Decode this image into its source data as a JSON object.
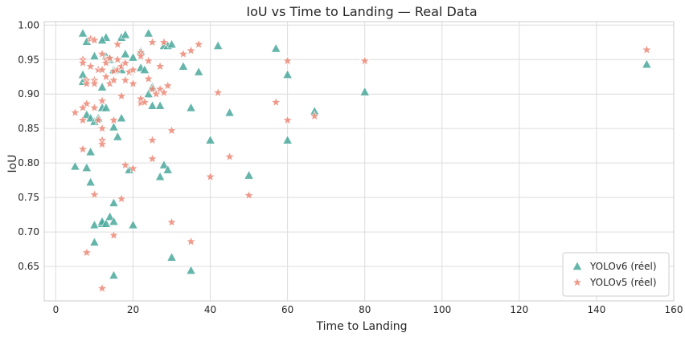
{
  "chart_data": {
    "type": "scatter",
    "title": "IoU vs Time to Landing — Real Data",
    "xlabel": "Time to Landing",
    "ylabel": "IoU",
    "xlim": [
      -3,
      160
    ],
    "ylim": [
      0.6,
      1.005
    ],
    "xticks": [
      0,
      20,
      40,
      60,
      80,
      100,
      120,
      140,
      160
    ],
    "yticks": [
      0.65,
      0.7,
      0.75,
      0.8,
      0.85,
      0.9,
      0.95,
      1.0
    ],
    "grid": true,
    "legend_position": "bottom-right",
    "series": [
      {
        "name": "YOLOv6 (réel)",
        "marker": "triangle",
        "color": "#4aa89c",
        "points": [
          [
            7,
            0.988
          ],
          [
            8,
            0.976
          ],
          [
            13,
            0.982
          ],
          [
            17,
            0.982
          ],
          [
            18,
            0.986
          ],
          [
            24,
            0.988
          ],
          [
            7,
            0.928
          ],
          [
            7,
            0.918
          ],
          [
            8,
            0.87
          ],
          [
            9,
            0.865
          ],
          [
            10,
            0.86
          ],
          [
            10,
            0.955
          ],
          [
            12,
            0.978
          ],
          [
            11,
            0.865
          ],
          [
            12,
            0.91
          ],
          [
            12,
            0.88
          ],
          [
            13,
            0.88
          ],
          [
            13,
            0.955
          ],
          [
            14,
            0.95
          ],
          [
            15,
            0.935
          ],
          [
            15,
            0.852
          ],
          [
            16,
            0.838
          ],
          [
            17,
            0.865
          ],
          [
            17,
            0.935
          ],
          [
            18,
            0.958
          ],
          [
            20,
            0.953
          ],
          [
            22,
            0.938
          ],
          [
            22,
            0.962
          ],
          [
            23,
            0.935
          ],
          [
            24,
            0.9
          ],
          [
            25,
            0.883
          ],
          [
            25,
            0.91
          ],
          [
            27,
            0.883
          ],
          [
            28,
            0.97
          ],
          [
            29,
            0.97
          ],
          [
            30,
            0.972
          ],
          [
            33,
            0.94
          ],
          [
            35,
            0.88
          ],
          [
            37,
            0.932
          ],
          [
            42,
            0.97
          ],
          [
            45,
            0.873
          ],
          [
            57,
            0.966
          ],
          [
            60,
            0.928
          ],
          [
            60,
            0.833
          ],
          [
            67,
            0.875
          ],
          [
            80,
            0.903
          ],
          [
            153,
            0.943
          ],
          [
            5,
            0.795
          ],
          [
            8,
            0.793
          ],
          [
            9,
            0.816
          ],
          [
            9,
            0.772
          ],
          [
            10,
            0.71
          ],
          [
            10,
            0.685
          ],
          [
            12,
            0.712
          ],
          [
            12,
            0.715
          ],
          [
            13,
            0.712
          ],
          [
            14,
            0.722
          ],
          [
            15,
            0.742
          ],
          [
            15,
            0.715
          ],
          [
            15,
            0.637
          ],
          [
            19,
            0.79
          ],
          [
            20,
            0.71
          ],
          [
            27,
            0.78
          ],
          [
            28,
            0.797
          ],
          [
            29,
            0.79
          ],
          [
            30,
            0.663
          ],
          [
            35,
            0.644
          ],
          [
            40,
            0.833
          ],
          [
            50,
            0.782
          ]
        ]
      },
      {
        "name": "YOLOv5 (réel)",
        "marker": "star",
        "color": "#ec8a78",
        "points": [
          [
            5,
            0.873
          ],
          [
            7,
            0.862
          ],
          [
            7,
            0.95
          ],
          [
            7,
            0.945
          ],
          [
            8,
            0.92
          ],
          [
            8,
            0.915
          ],
          [
            8,
            0.886
          ],
          [
            9,
            0.98
          ],
          [
            9,
            0.94
          ],
          [
            10,
            0.978
          ],
          [
            10,
            0.92
          ],
          [
            10,
            0.915
          ],
          [
            10,
            0.88
          ],
          [
            11,
            0.935
          ],
          [
            11,
            0.862
          ],
          [
            12,
            0.958
          ],
          [
            12,
            0.935
          ],
          [
            12,
            0.89
          ],
          [
            12,
            0.85
          ],
          [
            13,
            0.95
          ],
          [
            13,
            0.945
          ],
          [
            13,
            0.925
          ],
          [
            14,
            0.952
          ],
          [
            14,
            0.915
          ],
          [
            15,
            0.933
          ],
          [
            15,
            0.92
          ],
          [
            16,
            0.972
          ],
          [
            16,
            0.95
          ],
          [
            16,
            0.935
          ],
          [
            17,
            0.897
          ],
          [
            17,
            0.94
          ],
          [
            18,
            0.92
          ],
          [
            18,
            0.945
          ],
          [
            19,
            0.932
          ],
          [
            20,
            0.935
          ],
          [
            20,
            0.915
          ],
          [
            22,
            0.96
          ],
          [
            22,
            0.955
          ],
          [
            22,
            0.887
          ],
          [
            22,
            0.893
          ],
          [
            23,
            0.888
          ],
          [
            24,
            0.948
          ],
          [
            24,
            0.922
          ],
          [
            25,
            0.975
          ],
          [
            25,
            0.907
          ],
          [
            26,
            0.9
          ],
          [
            27,
            0.907
          ],
          [
            27,
            0.94
          ],
          [
            28,
            0.975
          ],
          [
            28,
            0.902
          ],
          [
            29,
            0.912
          ],
          [
            30,
            0.847
          ],
          [
            33,
            0.958
          ],
          [
            35,
            0.963
          ],
          [
            37,
            0.972
          ],
          [
            42,
            0.902
          ],
          [
            57,
            0.888
          ],
          [
            60,
            0.948
          ],
          [
            60,
            0.862
          ],
          [
            67,
            0.868
          ],
          [
            80,
            0.948
          ],
          [
            153,
            0.964
          ],
          [
            7,
            0.88
          ],
          [
            7,
            0.82
          ],
          [
            8,
            0.67
          ],
          [
            10,
            0.754
          ],
          [
            12,
            0.833
          ],
          [
            12,
            0.827
          ],
          [
            12,
            0.618
          ],
          [
            15,
            0.695
          ],
          [
            15,
            0.862
          ],
          [
            17,
            0.748
          ],
          [
            18,
            0.797
          ],
          [
            20,
            0.792
          ],
          [
            25,
            0.833
          ],
          [
            25,
            0.806
          ],
          [
            30,
            0.714
          ],
          [
            35,
            0.686
          ],
          [
            40,
            0.78
          ],
          [
            45,
            0.809
          ],
          [
            50,
            0.753
          ]
        ]
      }
    ]
  }
}
